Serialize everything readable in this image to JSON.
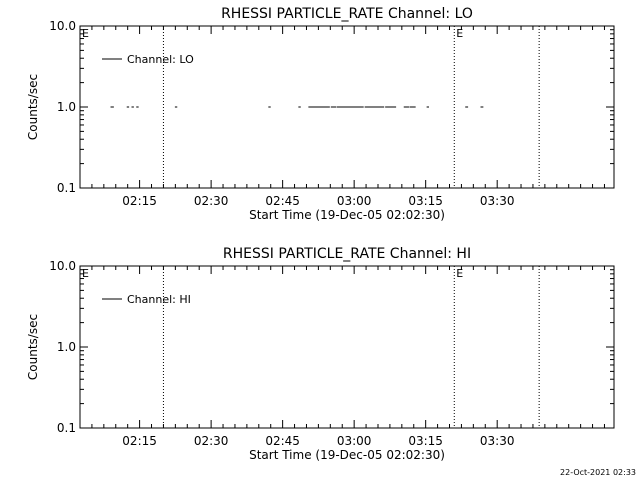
{
  "footer": "22-Oct-2021 02:33",
  "chart_data": [
    {
      "type": "scatter",
      "title": "RHESSI PARTICLE_RATE Channel: LO",
      "xlabel": "Start Time (19-Dec-05 02:02:30)",
      "ylabel": "Counts/sec",
      "yscale": "log",
      "ylim": [
        0.1,
        10.0
      ],
      "xlim_minutes": [
        0,
        112
      ],
      "xticks": [
        {
          "minute": 12.5,
          "label": "02:15"
        },
        {
          "minute": 27.5,
          "label": "02:30"
        },
        {
          "minute": 42.5,
          "label": "02:45"
        },
        {
          "minute": 57.5,
          "label": "03:00"
        },
        {
          "minute": 72.5,
          "label": "03:15"
        },
        {
          "minute": 87.5,
          "label": "03:30"
        }
      ],
      "yticks": [
        {
          "value": 10.0,
          "label": "10.0"
        },
        {
          "value": 1.0,
          "label": "1.0"
        },
        {
          "value": 0.1,
          "label": "0.1"
        }
      ],
      "legend": {
        "label": "Channel: LO",
        "position": "top-left"
      },
      "markers": [
        {
          "minute": 0,
          "label": "E"
        },
        {
          "minute": 78.5,
          "label": "E"
        }
      ],
      "vlines_minutes": [
        17.5,
        78.5,
        96.3
      ],
      "series": [
        {
          "name": "Channel: LO",
          "segments": [
            {
              "x": [
                6.4,
                7.1
              ],
              "y": 1.0
            },
            {
              "x": [
                9.8,
                10.3
              ],
              "y": 1.0
            },
            {
              "x": [
                10.8,
                11.3
              ],
              "y": 1.0
            },
            {
              "x": [
                11.8,
                12.3
              ],
              "y": 1.0
            },
            {
              "x": [
                19.9,
                20.4
              ],
              "y": 1.0
            },
            {
              "x": [
                39.5,
                40.0
              ],
              "y": 1.0
            },
            {
              "x": [
                45.8,
                46.3
              ],
              "y": 1.0
            },
            {
              "x": [
                47.9,
                52.4
              ],
              "y": 1.0
            },
            {
              "x": [
                52.6,
                53.8
              ],
              "y": 1.0
            },
            {
              "x": [
                53.9,
                59.5
              ],
              "y": 1.0
            },
            {
              "x": [
                59.7,
                63.8
              ],
              "y": 1.0
            },
            {
              "x": [
                64.0,
                66.3
              ],
              "y": 1.0
            },
            {
              "x": [
                67.9,
                69.0
              ],
              "y": 1.0
            },
            {
              "x": [
                69.1,
                70.4
              ],
              "y": 1.0
            },
            {
              "x": [
                72.7,
                73.2
              ],
              "y": 1.0
            },
            {
              "x": [
                80.8,
                81.4
              ],
              "y": 1.0
            },
            {
              "x": [
                84.0,
                84.6
              ],
              "y": 1.0
            }
          ]
        }
      ]
    },
    {
      "type": "scatter",
      "title": "RHESSI PARTICLE_RATE Channel: HI",
      "xlabel": "Start Time (19-Dec-05 02:02:30)",
      "ylabel": "Counts/sec",
      "yscale": "log",
      "ylim": [
        0.1,
        10.0
      ],
      "xlim_minutes": [
        0,
        112
      ],
      "xticks": [
        {
          "minute": 12.5,
          "label": "02:15"
        },
        {
          "minute": 27.5,
          "label": "02:30"
        },
        {
          "minute": 42.5,
          "label": "02:45"
        },
        {
          "minute": 57.5,
          "label": "03:00"
        },
        {
          "minute": 72.5,
          "label": "03:15"
        },
        {
          "minute": 87.5,
          "label": "03:30"
        }
      ],
      "yticks": [
        {
          "value": 10.0,
          "label": "10.0"
        },
        {
          "value": 1.0,
          "label": "1.0"
        },
        {
          "value": 0.1,
          "label": "0.1"
        }
      ],
      "legend": {
        "label": "Channel: HI",
        "position": "top-left"
      },
      "markers": [
        {
          "minute": 0,
          "label": "E"
        },
        {
          "minute": 78.5,
          "label": "E"
        }
      ],
      "vlines_minutes": [
        17.5,
        78.5,
        96.3
      ],
      "series": [
        {
          "name": "Channel: HI",
          "segments": []
        }
      ]
    }
  ]
}
